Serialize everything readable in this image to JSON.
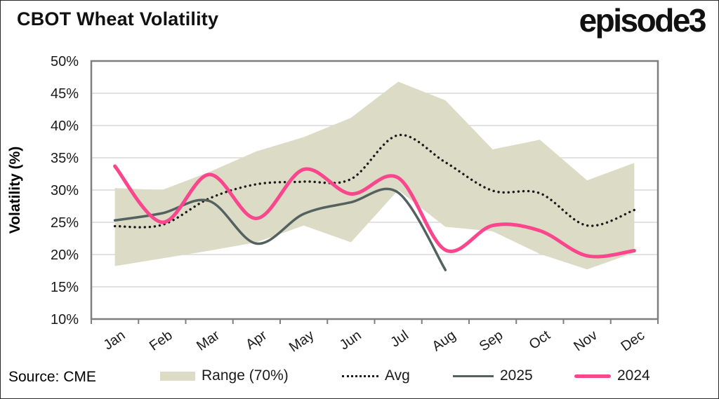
{
  "header": {
    "title": "CBOT Wheat Volatility",
    "logo": "episode3"
  },
  "footer": {
    "source": "Source: CME"
  },
  "legend": {
    "range_label": "Range (70%)",
    "avg_label": "Avg",
    "s2025_label": "2025",
    "s2024_label": "2024"
  },
  "colors": {
    "pink_2024": "#F9468C",
    "dark_2025": "#53625F",
    "range_band": "#DCDBC5",
    "gridline": "#D9D9D9",
    "axis": "#7F7F7F",
    "text": "#1A1A1A"
  },
  "chart_data": {
    "type": "line",
    "title": "CBOT Wheat Volatility",
    "xlabel": "",
    "ylabel": "Volatility (%)",
    "ylim": [
      10,
      50
    ],
    "y_tick_labels": [
      "50%",
      "45%",
      "40%",
      "35%",
      "30%",
      "25%",
      "20%",
      "15%",
      "10%"
    ],
    "y_tick_values": [
      50,
      45,
      40,
      35,
      30,
      25,
      20,
      15,
      10
    ],
    "grid": "horizontal",
    "legend_position": "bottom",
    "categories": [
      "Jan",
      "Feb",
      "Mar",
      "Apr",
      "May",
      "Jun",
      "Jul",
      "Aug",
      "Sep",
      "Oct",
      "Nov",
      "Dec"
    ],
    "series": [
      {
        "name": "Range (70%) upper",
        "role": "band-upper",
        "values": [
          30.3,
          30.0,
          32.8,
          36.0,
          38.2,
          41.2,
          46.8,
          43.9,
          36.3,
          37.8,
          31.5,
          34.2
        ]
      },
      {
        "name": "Range (70%) lower",
        "role": "band-lower",
        "values": [
          18.2,
          19.4,
          20.6,
          21.9,
          24.5,
          21.9,
          30.0,
          24.3,
          23.6,
          20.1,
          17.7,
          20.3
        ]
      },
      {
        "name": "Avg",
        "role": "dotted-line",
        "values": [
          24.4,
          24.6,
          28.7,
          30.9,
          31.3,
          31.7,
          38.5,
          34.3,
          29.9,
          29.5,
          24.5,
          26.9
        ]
      },
      {
        "name": "2025",
        "role": "solid-line",
        "values": [
          25.3,
          26.4,
          28.3,
          21.7,
          26.3,
          28.1,
          29.6,
          17.6,
          null,
          null,
          null,
          null
        ]
      },
      {
        "name": "2024",
        "role": "solid-line",
        "values": [
          33.7,
          25.0,
          32.4,
          25.6,
          33.2,
          29.4,
          31.9,
          20.7,
          24.5,
          23.7,
          19.8,
          20.6
        ]
      }
    ]
  }
}
